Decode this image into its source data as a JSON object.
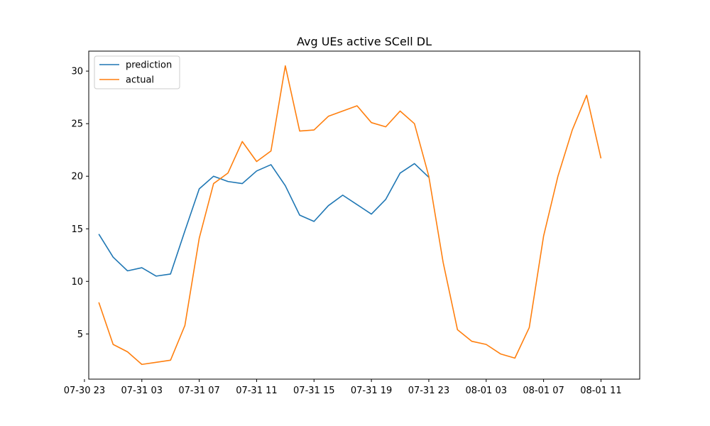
{
  "chart_data": {
    "type": "line",
    "title": "Avg UEs active SCell DL",
    "xlabel": "",
    "ylabel": "",
    "x_tick_labels": [
      "07-30 23",
      "07-31 03",
      "07-31 07",
      "07-31 11",
      "07-31 15",
      "07-31 19",
      "07-31 23",
      "08-01 03",
      "08-01 07",
      "08-01 11"
    ],
    "y_ticks": [
      5,
      10,
      15,
      20,
      25,
      30
    ],
    "ylim": [
      0.7,
      31.9
    ],
    "x_hours_range": [
      -0.7,
      37.7
    ],
    "grid": false,
    "legend_placement": "upper-left",
    "series": [
      {
        "name": "prediction",
        "color": "#1f77b4",
        "x": [
          "07-31 00",
          "07-31 01",
          "07-31 02",
          "07-31 03",
          "07-31 04",
          "07-31 05",
          "07-31 06",
          "07-31 07",
          "07-31 08",
          "07-31 09",
          "07-31 10",
          "07-31 11",
          "07-31 12",
          "07-31 13",
          "07-31 14",
          "07-31 15",
          "07-31 16",
          "07-31 17",
          "07-31 18",
          "07-31 19",
          "07-31 20",
          "07-31 21",
          "07-31 22",
          "07-31 23"
        ],
        "values": [
          14.5,
          12.3,
          11.0,
          11.3,
          10.5,
          10.7,
          14.8,
          18.8,
          20.0,
          19.5,
          19.3,
          20.5,
          21.1,
          19.1,
          16.3,
          15.7,
          17.2,
          18.2,
          17.3,
          16.4,
          17.8,
          20.3,
          21.2,
          19.9
        ]
      },
      {
        "name": "actual",
        "color": "#ff7f0e",
        "x": [
          "07-31 00",
          "07-31 01",
          "07-31 02",
          "07-31 03",
          "07-31 04",
          "07-31 05",
          "07-31 06",
          "07-31 07",
          "07-31 08",
          "07-31 09",
          "07-31 10",
          "07-31 11",
          "07-31 12",
          "07-31 13",
          "07-31 14",
          "07-31 15",
          "07-31 16",
          "07-31 17",
          "07-31 18",
          "07-31 19",
          "07-31 20",
          "07-31 21",
          "07-31 22",
          "07-31 23",
          "08-01 00",
          "08-01 01",
          "08-01 02",
          "08-01 03",
          "08-01 04",
          "08-01 05",
          "08-01 06",
          "08-01 07",
          "08-01 08",
          "08-01 09",
          "08-01 10",
          "08-01 11"
        ],
        "values": [
          8.0,
          4.0,
          3.3,
          2.1,
          2.3,
          2.5,
          5.8,
          14.1,
          19.3,
          20.3,
          23.3,
          21.4,
          22.4,
          30.5,
          24.3,
          24.4,
          25.7,
          26.2,
          26.7,
          25.1,
          24.7,
          26.2,
          25.0,
          20.0,
          11.8,
          5.4,
          4.3,
          4.0,
          3.1,
          2.7,
          5.6,
          14.3,
          20.0,
          24.4,
          27.7,
          21.7
        ]
      }
    ]
  }
}
